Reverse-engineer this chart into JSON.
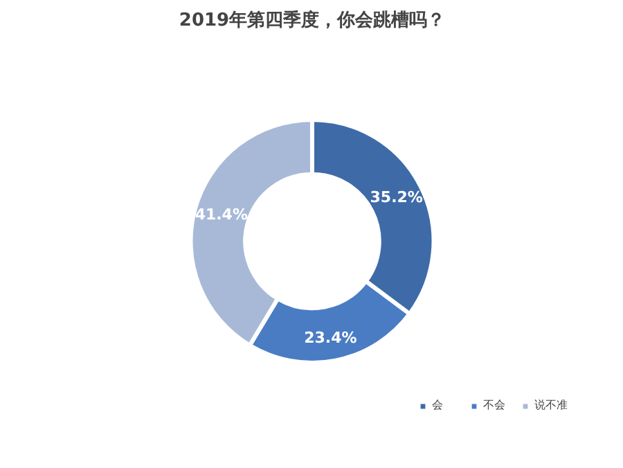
{
  "chart_data": {
    "type": "donut",
    "title": "2019年第四季度，你会跳槽吗？",
    "categories": [
      "会",
      "不会",
      "说不准"
    ],
    "values": [
      35.2,
      23.4,
      41.4
    ],
    "colors": [
      "#3e6ba8",
      "#4a7cc4",
      "#a8b9d8"
    ],
    "value_labels": [
      "35.2%",
      "23.4%",
      "41.4%"
    ],
    "legend": "bottom right"
  }
}
